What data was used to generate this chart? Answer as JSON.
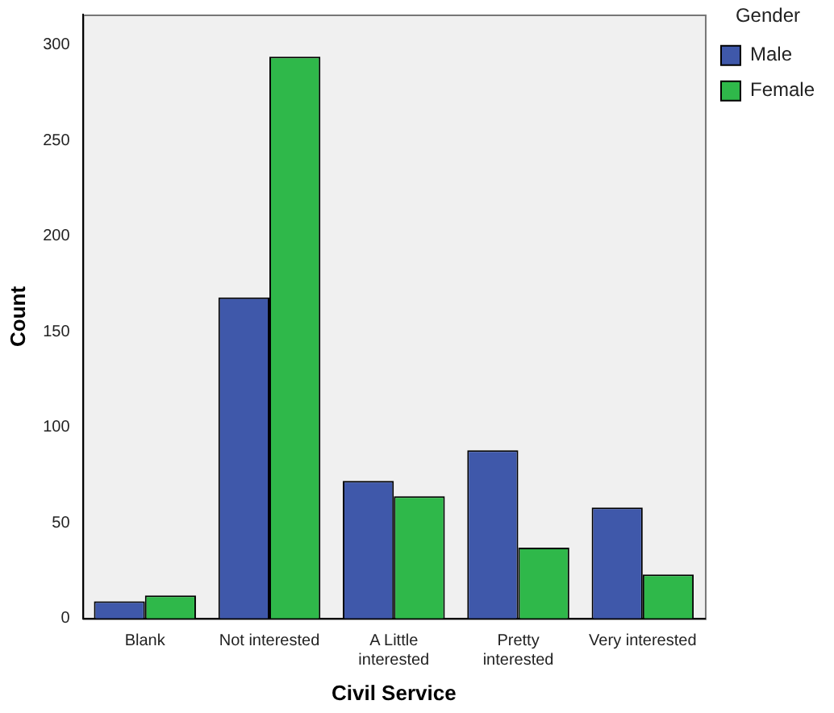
{
  "chart_data": {
    "type": "bar",
    "xlabel": "Civil Service",
    "ylabel": "Count",
    "legend_title": "Gender",
    "categories": [
      "Blank",
      "Not interested",
      "A Little interested",
      "Pretty interested",
      "Very interested"
    ],
    "series": [
      {
        "name": "Male",
        "color": "#3f58aa",
        "values": [
          9,
          168,
          72,
          88,
          58
        ]
      },
      {
        "name": "Female",
        "color": "#2fb84a",
        "values": [
          12,
          294,
          64,
          37,
          23
        ]
      }
    ],
    "ylim": [
      0,
      316
    ],
    "yticks": [
      0,
      50,
      100,
      150,
      200,
      250,
      300
    ],
    "grid": false,
    "legend": "top right"
  }
}
